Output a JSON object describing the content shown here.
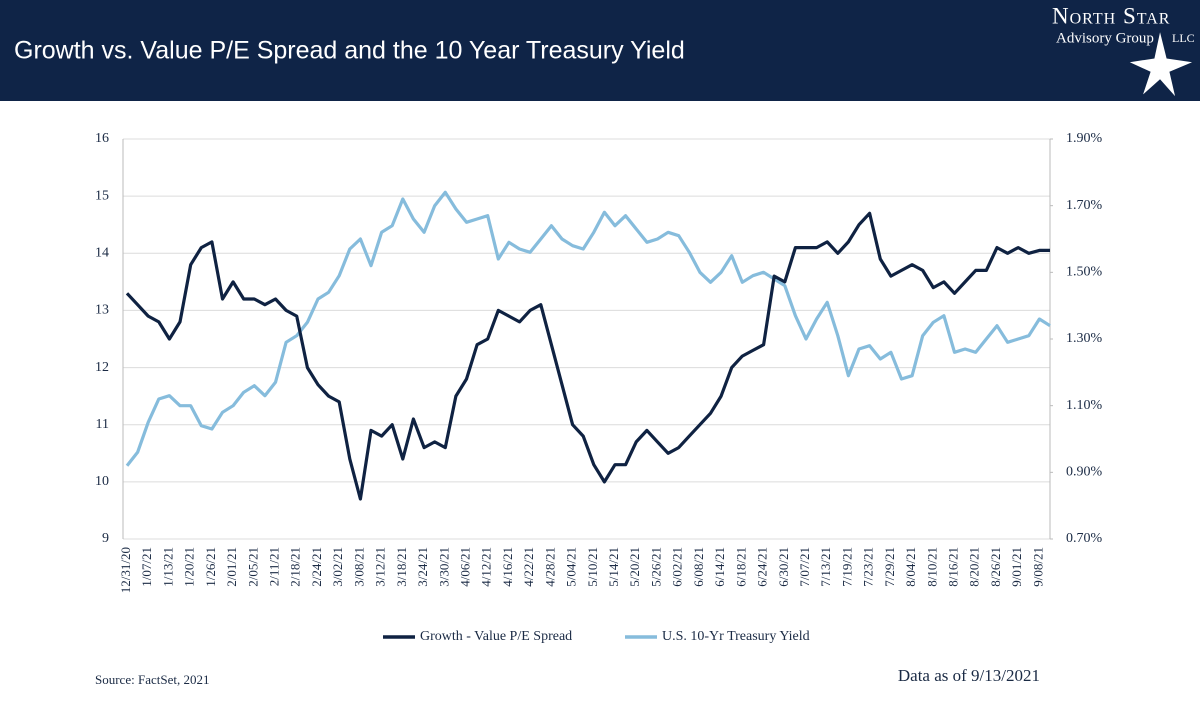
{
  "header": {
    "brand": "North Star",
    "subtitle": "Advisory Group",
    "suffix": "LLC"
  },
  "chart_data": {
    "type": "line",
    "title": "Growth vs. Value P/E Spread and the 10 Year Treasury Yield",
    "source": "Source: FactSet, 2021",
    "note": "Data as of 9/13/2021",
    "categories": [
      "12/31/20",
      null,
      "1/07/21",
      null,
      "1/13/21",
      null,
      "1/20/21",
      null,
      "1/26/21",
      null,
      "2/01/21",
      null,
      "2/05/21",
      null,
      "2/11/21",
      null,
      "2/18/21",
      null,
      "2/24/21",
      null,
      "3/02/21",
      null,
      "3/08/21",
      null,
      "3/12/21",
      null,
      "3/18/21",
      null,
      "3/24/21",
      null,
      "3/30/21",
      null,
      "4/06/21",
      null,
      "4/12/21",
      null,
      "4/16/21",
      null,
      "4/22/21",
      null,
      "4/28/21",
      null,
      "5/04/21",
      null,
      "5/10/21",
      null,
      "5/14/21",
      null,
      "5/20/21",
      null,
      "5/26/21",
      null,
      "6/02/21",
      null,
      "6/08/21",
      null,
      "6/14/21",
      null,
      "6/18/21",
      null,
      "6/24/21",
      null,
      "6/30/21",
      null,
      "7/07/21",
      null,
      "7/13/21",
      null,
      "7/19/21",
      null,
      "7/23/21",
      null,
      "7/29/21",
      null,
      "8/04/21",
      null,
      "8/10/21",
      null,
      "8/16/21",
      null,
      "8/20/21",
      null,
      "8/26/21",
      null,
      "9/01/21",
      null,
      "9/08/21",
      null
    ],
    "series": [
      {
        "name": "Growth - Value P/E Spread",
        "color": "#0f2242",
        "values": [
          13.3,
          13.1,
          12.9,
          12.8,
          12.5,
          12.8,
          13.8,
          14.1,
          14.2,
          13.2,
          13.5,
          13.2,
          13.2,
          13.1,
          13.2,
          13.0,
          12.9,
          12.0,
          11.7,
          11.5,
          11.4,
          10.4,
          9.7,
          10.9,
          10.8,
          11.0,
          10.4,
          11.1,
          10.6,
          10.7,
          10.6,
          11.5,
          11.8,
          12.4,
          12.5,
          13.0,
          12.9,
          12.8,
          13.0,
          13.1,
          12.4,
          11.7,
          11.0,
          10.8,
          10.3,
          10.0,
          10.3,
          10.3,
          10.7,
          10.9,
          10.7,
          10.5,
          10.6,
          10.8,
          11.0,
          11.2,
          11.5,
          12.0,
          12.2,
          12.3,
          12.4,
          13.6,
          13.5,
          14.1,
          14.1,
          14.1,
          14.2,
          14.0,
          14.2,
          14.5,
          14.7,
          13.9,
          13.6,
          13.7,
          13.8,
          13.7,
          13.4,
          13.5,
          13.3,
          13.5,
          13.7,
          13.7,
          14.1,
          14.0,
          14.1,
          14.0,
          14.05,
          14.05
        ]
      },
      {
        "name": "U.S. 10-Yr Treasury Yield",
        "color": "#86bcdc",
        "axis": "y2",
        "values": [
          0.92,
          0.96,
          1.05,
          1.12,
          1.13,
          1.1,
          1.1,
          1.04,
          1.03,
          1.08,
          1.1,
          1.14,
          1.16,
          1.13,
          1.17,
          1.29,
          1.31,
          1.35,
          1.42,
          1.44,
          1.49,
          1.57,
          1.6,
          1.52,
          1.62,
          1.64,
          1.72,
          1.66,
          1.62,
          1.7,
          1.74,
          1.69,
          1.65,
          1.66,
          1.67,
          1.54,
          1.59,
          1.57,
          1.56,
          1.6,
          1.64,
          1.6,
          1.58,
          1.57,
          1.62,
          1.68,
          1.64,
          1.67,
          1.63,
          1.59,
          1.6,
          1.62,
          1.61,
          1.56,
          1.5,
          1.47,
          1.5,
          1.55,
          1.47,
          1.49,
          1.5,
          1.48,
          1.46,
          1.37,
          1.3,
          1.36,
          1.41,
          1.31,
          1.19,
          1.27,
          1.28,
          1.24,
          1.26,
          1.18,
          1.19,
          1.31,
          1.35,
          1.37,
          1.26,
          1.27,
          1.26,
          1.3,
          1.34,
          1.29,
          1.3,
          1.31,
          1.36,
          1.34
        ]
      }
    ],
    "ylim": [
      9,
      16
    ],
    "yticks": [
      9,
      10,
      11,
      12,
      13,
      14,
      15,
      16
    ],
    "y2lim": [
      0.7,
      1.9
    ],
    "y2ticks": [
      {
        "value": 0.7,
        "label": "0.70%"
      },
      {
        "value": 0.9,
        "label": "0.90%"
      },
      {
        "value": 1.1,
        "label": "1.10%"
      },
      {
        "value": 1.3,
        "label": "1.30%"
      },
      {
        "value": 1.5,
        "label": "1.50%"
      },
      {
        "value": 1.7,
        "label": "1.70%"
      },
      {
        "value": 1.9,
        "label": "1.90%"
      }
    ],
    "grid": true,
    "legend": "bottom"
  }
}
